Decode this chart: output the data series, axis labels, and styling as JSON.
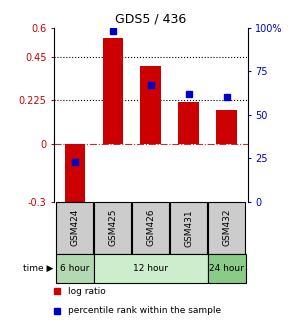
{
  "title": "GDS5 / 436",
  "samples": [
    "GSM424",
    "GSM425",
    "GSM426",
    "GSM431",
    "GSM432"
  ],
  "log_ratio": [
    -0.35,
    0.545,
    0.4,
    0.215,
    0.175
  ],
  "percentile_rank": [
    23,
    98,
    67,
    62,
    60
  ],
  "left_ylim": [
    -0.3,
    0.6
  ],
  "right_ylim": [
    0,
    100
  ],
  "left_yticks": [
    -0.3,
    0,
    0.225,
    0.45,
    0.6
  ],
  "left_yticklabels": [
    "-0.3",
    "0",
    "0.225",
    "0.45",
    "0.6"
  ],
  "right_yticks": [
    0,
    25,
    50,
    75,
    100
  ],
  "right_yticklabels": [
    "0",
    "25",
    "50",
    "75",
    "100%"
  ],
  "hlines": [
    0.225,
    0.45
  ],
  "bar_color": "#cc0000",
  "dot_color": "#0000cc",
  "time_groups": [
    {
      "label": "6 hour",
      "samples": [
        "GSM424"
      ],
      "color": "#b2d9b2"
    },
    {
      "label": "12 hour",
      "samples": [
        "GSM425",
        "GSM426",
        "GSM431"
      ],
      "color": "#cceecc"
    },
    {
      "label": "24 hour",
      "samples": [
        "GSM432"
      ],
      "color": "#88cc88"
    }
  ],
  "sample_box_color": "#cccccc",
  "background_color": "#ffffff",
  "legend_items": [
    {
      "label": "log ratio",
      "color": "#cc0000"
    },
    {
      "label": "percentile rank within the sample",
      "color": "#0000cc"
    }
  ]
}
